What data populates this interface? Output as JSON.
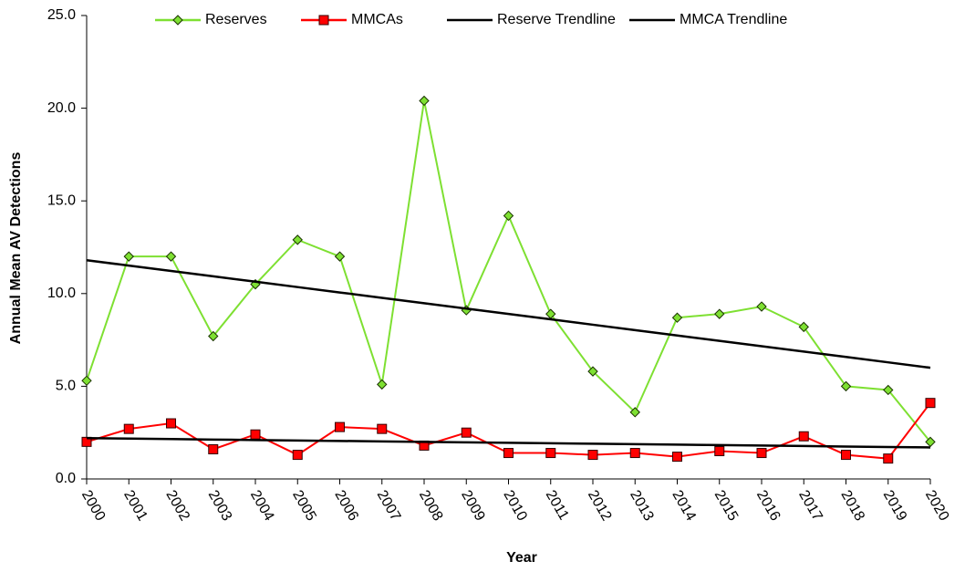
{
  "chart_data": {
    "type": "line",
    "x_label": "Year",
    "y_label": "Annual Mean AV Detections",
    "categories": [
      "2000",
      "2001",
      "2002",
      "2003",
      "2004",
      "2005",
      "2006",
      "2007",
      "2008",
      "2009",
      "2010",
      "2011",
      "2012",
      "2013",
      "2014",
      "2015",
      "2016",
      "2017",
      "2018",
      "2019",
      "2020"
    ],
    "series": [
      {
        "name": "Reserves",
        "color": "#7ee032",
        "marker": "diamond",
        "values": [
          5.3,
          12.0,
          12.0,
          7.7,
          10.5,
          12.9,
          12.0,
          5.1,
          20.4,
          9.1,
          14.2,
          8.9,
          5.8,
          3.6,
          8.7,
          8.9,
          9.3,
          8.2,
          5.0,
          4.8,
          2.0
        ]
      },
      {
        "name": "MMCAs",
        "color": "#ff0000",
        "marker": "square",
        "values": [
          2.0,
          2.7,
          3.0,
          1.6,
          2.4,
          1.3,
          2.8,
          2.7,
          1.8,
          2.5,
          1.4,
          1.4,
          1.3,
          1.4,
          1.2,
          1.5,
          1.4,
          2.3,
          1.3,
          1.1,
          4.1
        ]
      },
      {
        "name": "Reserve Trendline",
        "color": "#000000",
        "marker": "none",
        "values": [
          11.8,
          11.51,
          11.22,
          10.93,
          10.64,
          10.35,
          10.06,
          9.77,
          9.48,
          9.19,
          8.9,
          8.61,
          8.32,
          8.03,
          7.74,
          7.45,
          7.16,
          6.87,
          6.58,
          6.29,
          6.0
        ]
      },
      {
        "name": "MMCA Trendline",
        "color": "#000000",
        "marker": "none",
        "values": [
          2.2,
          2.175,
          2.15,
          2.125,
          2.1,
          2.075,
          2.05,
          2.025,
          2.0,
          1.975,
          1.95,
          1.925,
          1.9,
          1.875,
          1.85,
          1.825,
          1.8,
          1.775,
          1.75,
          1.725,
          1.7
        ]
      }
    ],
    "ylim": [
      0,
      25
    ],
    "yticks": [
      {
        "value": 0,
        "label": "0.0"
      },
      {
        "value": 5,
        "label": "5.0"
      },
      {
        "value": 10,
        "label": "10.0"
      },
      {
        "value": 15,
        "label": "15.0"
      },
      {
        "value": 20,
        "label": "20.0"
      },
      {
        "value": 25,
        "label": "25.0"
      }
    ],
    "grid": false,
    "legend": "top"
  }
}
